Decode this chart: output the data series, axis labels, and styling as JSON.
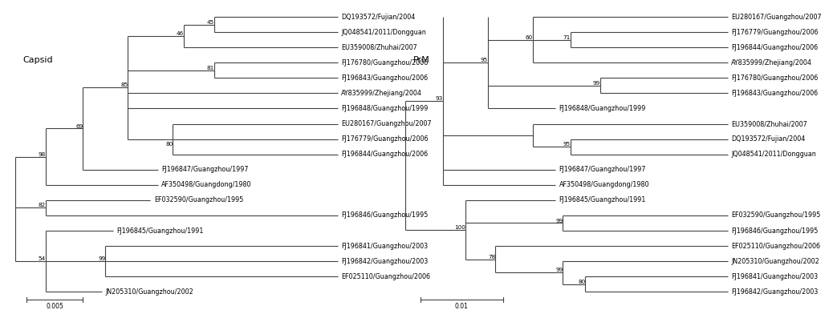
{
  "bg_color": "#ffffff",
  "line_color": "#444444",
  "text_color": "#000000",
  "font_size": 5.8,
  "bootstrap_font_size": 5.2,
  "title_font_size": 8.0,
  "left_title": "Capsid",
  "right_title": "PrM",
  "scale_left_label": "0.005",
  "scale_right_label": "0.01",
  "left_leaves": [
    "DQ193572/Fujian/2004",
    "JQ048541/2011/Dongguan",
    "EU359008/Zhuhai/2007",
    "FJ176780/Guangzhou/2006",
    "FJ196843/Guangzhou/2006",
    "AY835999/Zhejiang/2004",
    "FJ196848/Guangzhou/1999",
    "EU280167/Guangzhou/2007",
    "FJ176779/Guangzhou/2006",
    "FJ196844/Guangzhou/2006",
    "FJ196847/Guangzhou/1997",
    "AF350498/Guangdong/1980",
    "EF032590/Guangzhou/1995",
    "FJ196846/Guangzhou/1995",
    "FJ196845/Guangzhou/1991",
    "FJ196841/Guangzhou/2003",
    "FJ196842/Guangzhou/2003",
    "EF025110/Guangzhou/2006",
    "JN205310/Guangzhou/2002"
  ],
  "right_leaves": [
    "EU280167/Guangzhou/2007",
    "FJ176779/Guangzhou/2006",
    "FJ196844/Guangzhou/2006",
    "AY835999/Zhejiang/2004",
    "FJ176780/Guangzhou/2006",
    "FJ196843/Guangzhou/2006",
    "FJ196848/Guangzhou/1999",
    "EU359008/Zhuhai/2007",
    "DQ193572/Fujian/2004",
    "JQ048541/2011/Dongguan",
    "FJ196847/Guangzhou/1997",
    "AF350498/Guangdong/1980",
    "FJ196845/Guangzhou/1991",
    "EF032590/Guangzhou/1995",
    "FJ196846/Guangzhou/1995",
    "EF025110/Guangzhou/2006",
    "JN205310/Guangzhou/2002",
    "FJ196841/Guangzhou/2003",
    "FJ196842/Guangzhou/2003"
  ]
}
